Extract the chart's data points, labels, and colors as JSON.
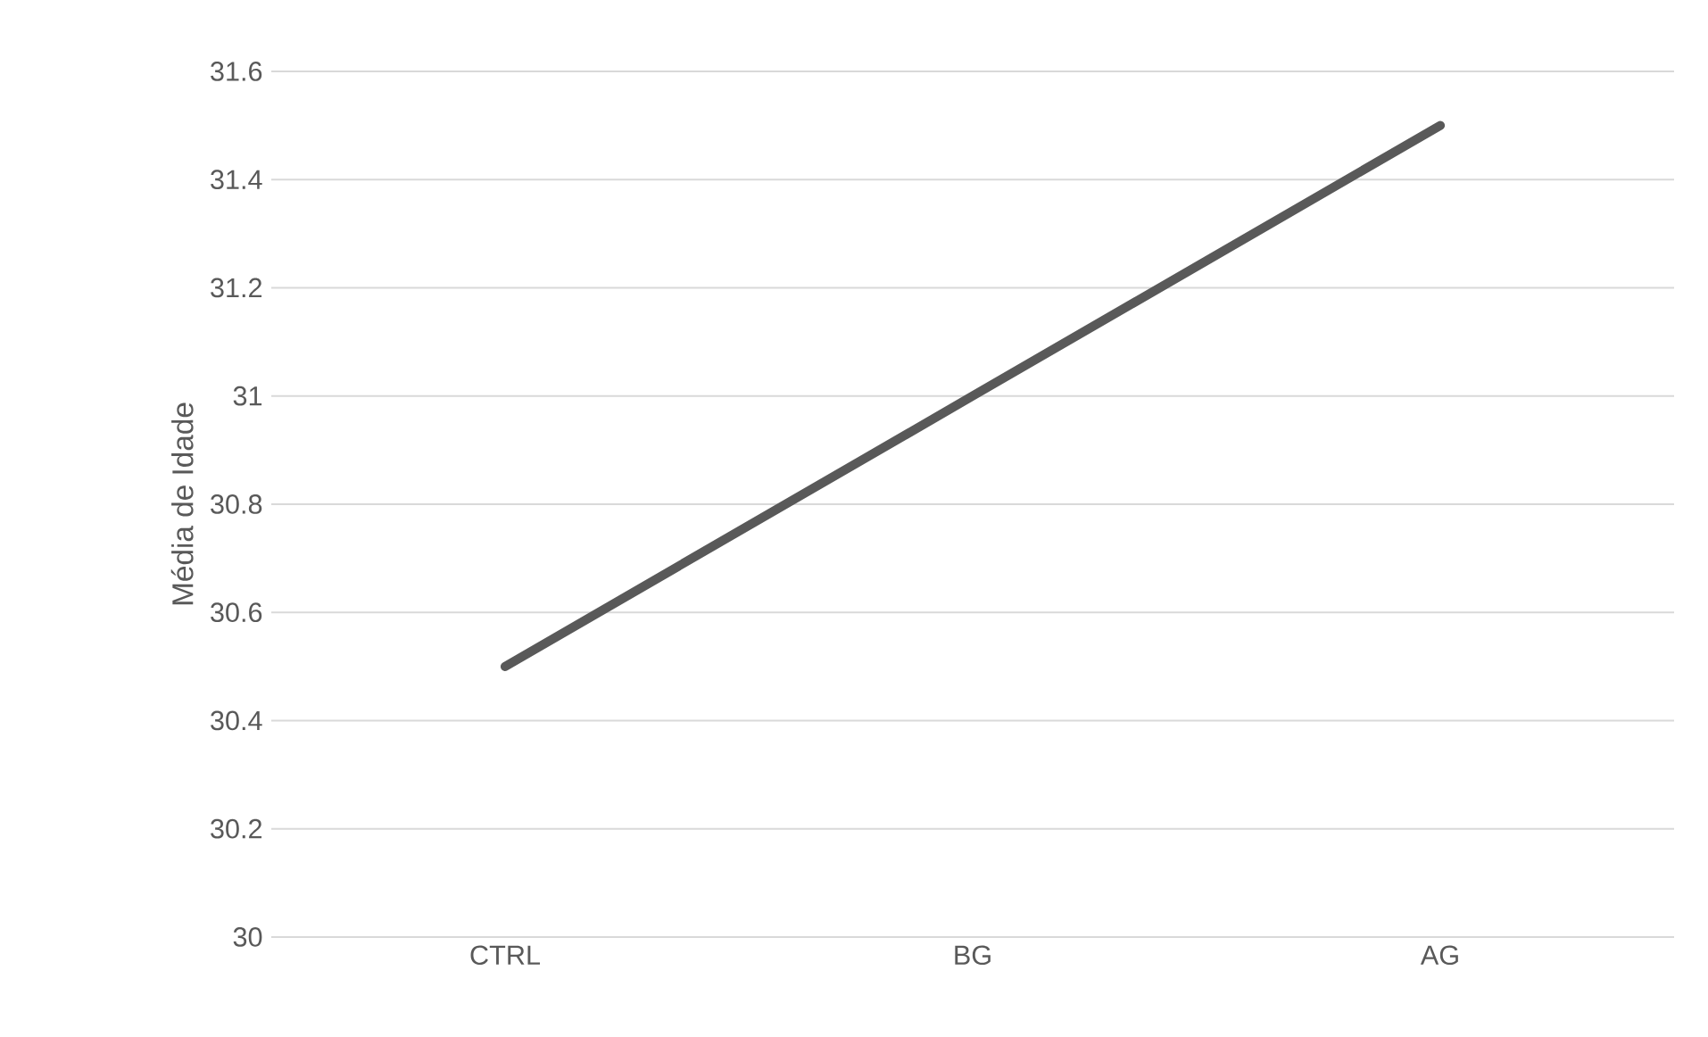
{
  "chart_data": {
    "type": "line",
    "ylabel": "Média de Idade",
    "categories": [
      "CTRL",
      "BG",
      "AG"
    ],
    "series": [
      {
        "color": "#595959",
        "values": [
          30.5,
          31.0,
          31.5
        ]
      }
    ],
    "ylim": [
      30,
      31.6
    ],
    "yticks": [
      30,
      30.2,
      30.4,
      30.6,
      30.8,
      31,
      31.2,
      31.4,
      31.6
    ],
    "grid": "y",
    "marker": "none",
    "line_style": "solid",
    "legend": false
  }
}
